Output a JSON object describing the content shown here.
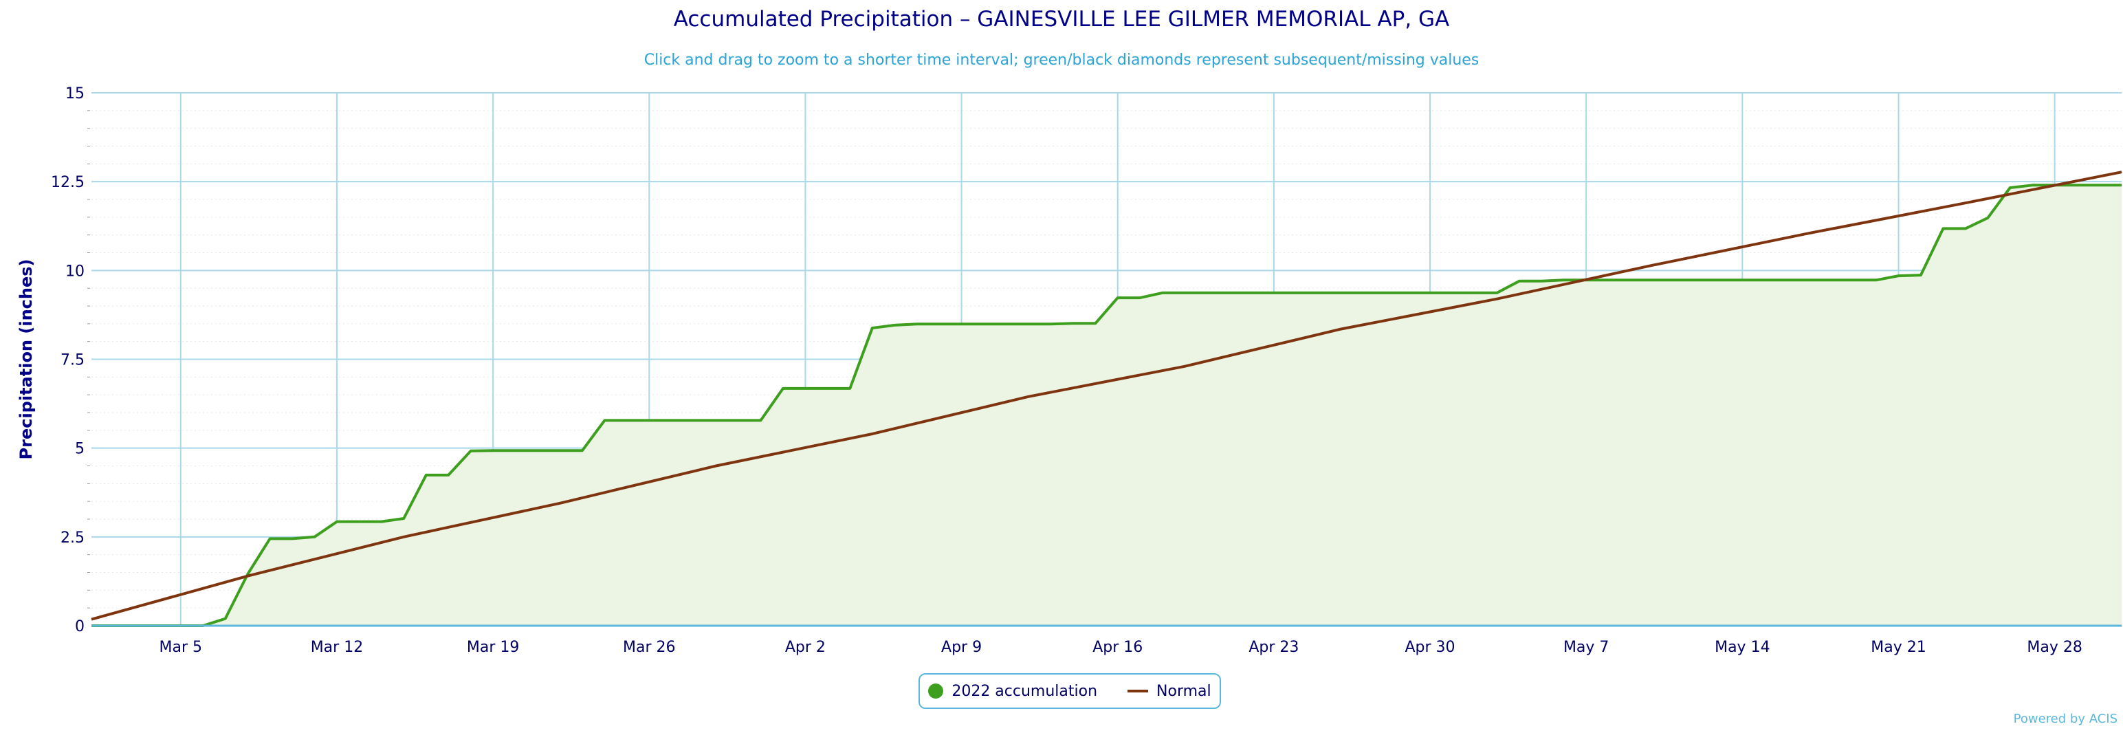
{
  "chart_data": {
    "type": "line",
    "title": "Accumulated Precipitation – GAINESVILLE LEE GILMER MEMORIAL AP, GA",
    "subtitle": "Click and drag to zoom to a shorter time interval; green/black diamonds represent subsequent/missing values",
    "ylabel": "Precipitation (inches)",
    "xlabel": "",
    "ylim": [
      0,
      15
    ],
    "xlim": [
      "2022-03-01",
      "2022-05-31"
    ],
    "yticks": [
      "0",
      "2.5",
      "5",
      "7.5",
      "10",
      "12.5",
      "15"
    ],
    "xticks": [
      "Mar 5",
      "Mar 12",
      "Mar 19",
      "Mar 26",
      "Apr 2",
      "Apr 9",
      "Apr 16",
      "Apr 23",
      "Apr 30",
      "May 7",
      "May 14",
      "May 21",
      "May 28"
    ],
    "grid": true,
    "legend_position": "bottom-center",
    "series": [
      {
        "name": "2022 accumulation",
        "color": "#3e9e1e",
        "fill": "#ecf4e4",
        "points": [
          [
            "2022-03-01",
            0
          ],
          [
            "2022-03-02",
            0
          ],
          [
            "2022-03-03",
            0
          ],
          [
            "2022-03-04",
            0
          ],
          [
            "2022-03-05",
            0
          ],
          [
            "2022-03-06",
            0
          ],
          [
            "2022-03-07",
            0.2
          ],
          [
            "2022-03-08",
            1.45
          ],
          [
            "2022-03-09",
            2.45
          ],
          [
            "2022-03-10",
            2.45
          ],
          [
            "2022-03-11",
            2.5
          ],
          [
            "2022-03-12",
            2.93
          ],
          [
            "2022-03-13",
            2.93
          ],
          [
            "2022-03-14",
            2.93
          ],
          [
            "2022-03-15",
            3.02
          ],
          [
            "2022-03-16",
            4.24
          ],
          [
            "2022-03-17",
            4.24
          ],
          [
            "2022-03-18",
            4.92
          ],
          [
            "2022-03-19",
            4.93
          ],
          [
            "2022-03-20",
            4.93
          ],
          [
            "2022-03-21",
            4.93
          ],
          [
            "2022-03-22",
            4.93
          ],
          [
            "2022-03-23",
            4.93
          ],
          [
            "2022-03-24",
            5.78
          ],
          [
            "2022-03-25",
            5.78
          ],
          [
            "2022-03-26",
            5.78
          ],
          [
            "2022-03-27",
            5.78
          ],
          [
            "2022-03-28",
            5.78
          ],
          [
            "2022-03-29",
            5.78
          ],
          [
            "2022-03-30",
            5.78
          ],
          [
            "2022-03-31",
            5.78
          ],
          [
            "2022-04-01",
            6.68
          ],
          [
            "2022-04-02",
            6.68
          ],
          [
            "2022-04-03",
            6.68
          ],
          [
            "2022-04-04",
            6.68
          ],
          [
            "2022-04-05",
            8.38
          ],
          [
            "2022-04-06",
            8.46
          ],
          [
            "2022-04-07",
            8.49
          ],
          [
            "2022-04-08",
            8.49
          ],
          [
            "2022-04-09",
            8.49
          ],
          [
            "2022-04-10",
            8.49
          ],
          [
            "2022-04-11",
            8.49
          ],
          [
            "2022-04-12",
            8.49
          ],
          [
            "2022-04-13",
            8.49
          ],
          [
            "2022-04-14",
            8.51
          ],
          [
            "2022-04-15",
            8.51
          ],
          [
            "2022-04-16",
            9.23
          ],
          [
            "2022-04-17",
            9.23
          ],
          [
            "2022-04-18",
            9.37
          ],
          [
            "2022-04-19",
            9.37
          ],
          [
            "2022-04-20",
            9.37
          ],
          [
            "2022-04-21",
            9.37
          ],
          [
            "2022-04-22",
            9.37
          ],
          [
            "2022-04-23",
            9.37
          ],
          [
            "2022-04-24",
            9.37
          ],
          [
            "2022-04-25",
            9.37
          ],
          [
            "2022-04-26",
            9.37
          ],
          [
            "2022-04-27",
            9.37
          ],
          [
            "2022-04-28",
            9.37
          ],
          [
            "2022-04-29",
            9.37
          ],
          [
            "2022-04-30",
            9.37
          ],
          [
            "2022-05-01",
            9.37
          ],
          [
            "2022-05-02",
            9.37
          ],
          [
            "2022-05-03",
            9.37
          ],
          [
            "2022-05-04",
            9.7
          ],
          [
            "2022-05-05",
            9.7
          ],
          [
            "2022-05-06",
            9.73
          ],
          [
            "2022-05-07",
            9.73
          ],
          [
            "2022-05-08",
            9.73
          ],
          [
            "2022-05-09",
            9.73
          ],
          [
            "2022-05-10",
            9.73
          ],
          [
            "2022-05-11",
            9.73
          ],
          [
            "2022-05-12",
            9.73
          ],
          [
            "2022-05-13",
            9.73
          ],
          [
            "2022-05-14",
            9.73
          ],
          [
            "2022-05-15",
            9.73
          ],
          [
            "2022-05-16",
            9.73
          ],
          [
            "2022-05-17",
            9.73
          ],
          [
            "2022-05-18",
            9.73
          ],
          [
            "2022-05-19",
            9.73
          ],
          [
            "2022-05-20",
            9.73
          ],
          [
            "2022-05-21",
            9.85
          ],
          [
            "2022-05-22",
            9.87
          ],
          [
            "2022-05-23",
            11.18
          ],
          [
            "2022-05-24",
            11.18
          ],
          [
            "2022-05-25",
            11.48
          ],
          [
            "2022-05-26",
            12.33
          ],
          [
            "2022-05-27",
            12.4
          ],
          [
            "2022-05-28",
            12.4
          ],
          [
            "2022-05-29",
            12.4
          ],
          [
            "2022-05-30",
            12.4
          ],
          [
            "2022-05-31",
            12.4
          ]
        ]
      },
      {
        "name": "Normal",
        "color": "#7f3410",
        "points": [
          [
            "2022-03-01",
            0.18
          ],
          [
            "2022-03-08",
            1.4
          ],
          [
            "2022-03-15",
            2.5
          ],
          [
            "2022-03-22",
            3.45
          ],
          [
            "2022-03-29",
            4.5
          ],
          [
            "2022-04-05",
            5.4
          ],
          [
            "2022-04-12",
            6.45
          ],
          [
            "2022-04-19",
            7.3
          ],
          [
            "2022-04-26",
            8.35
          ],
          [
            "2022-05-03",
            9.2
          ],
          [
            "2022-05-10",
            10.15
          ],
          [
            "2022-05-17",
            11.05
          ],
          [
            "2022-05-24",
            11.9
          ],
          [
            "2022-05-31",
            12.77
          ]
        ]
      }
    ]
  },
  "legend": {
    "accum_label": "2022 accumulation",
    "normal_label": "Normal"
  },
  "credit": "Powered by ACIS"
}
